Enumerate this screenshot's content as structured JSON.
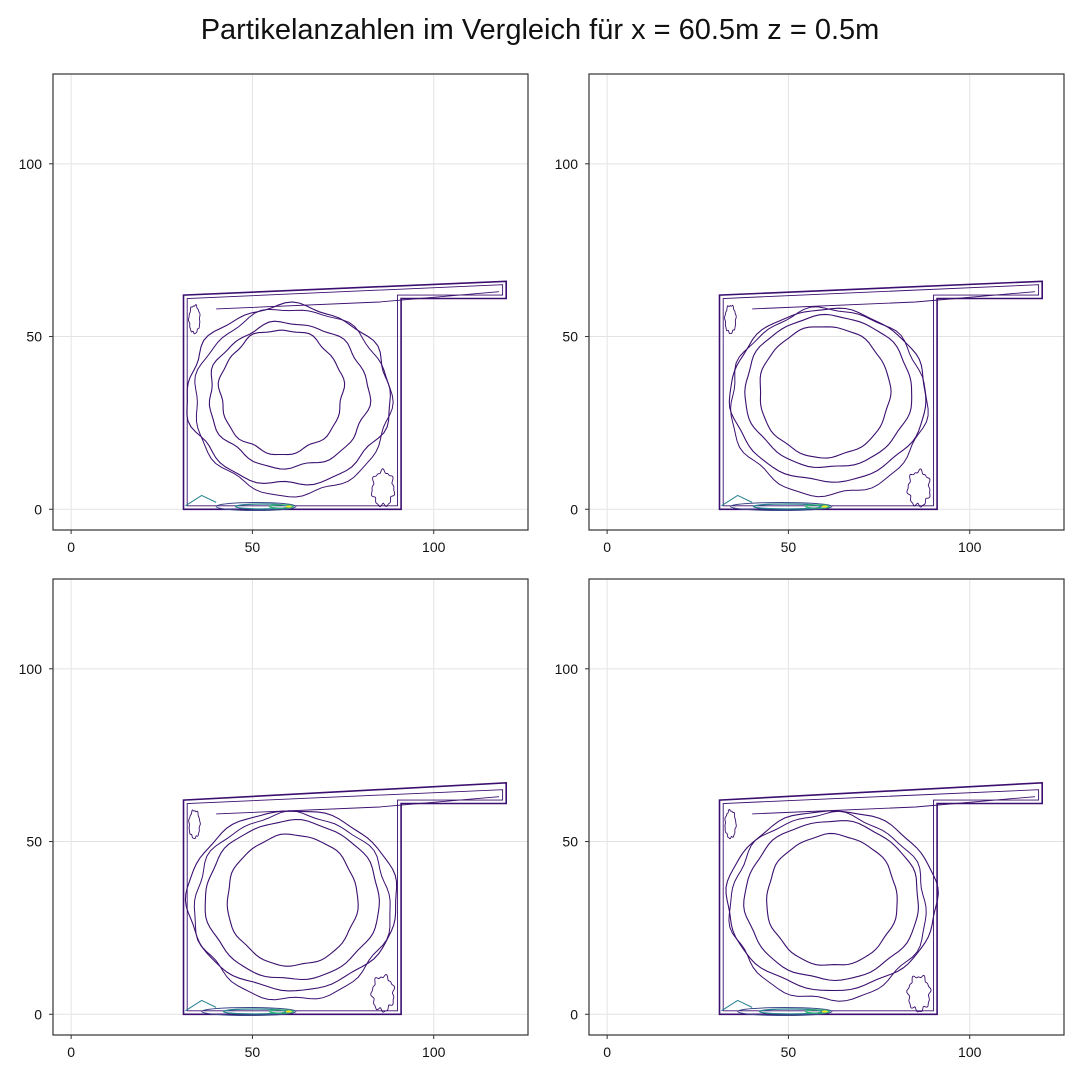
{
  "title": "Partikelanzahlen im Vergleich für x = 60.5m z = 0.5m",
  "colors": {
    "contour_dark": "#3b0f6f",
    "contour_mid": "#3e4a89",
    "contour_teal": "#26828e",
    "contour_green": "#35b779",
    "contour_yellow": "#fde725",
    "grid": "#e3e3e3",
    "frame": "#333333"
  },
  "chart_data": [
    {
      "type": "contour",
      "xlim": [
        -5,
        126
      ],
      "ylim": [
        -6,
        126
      ],
      "xticks": [
        0,
        50,
        100
      ],
      "yticks": [
        0,
        50,
        100
      ],
      "grid": true,
      "domain_outline": [
        [
          31,
          0
        ],
        [
          31,
          62
        ],
        [
          120,
          66
        ],
        [
          120,
          61
        ],
        [
          91,
          61
        ],
        [
          91,
          0
        ]
      ],
      "vortex_center": [
        59,
        32
      ],
      "contour_rings": [
        {
          "cx": 58,
          "cy": 34,
          "rx": 17,
          "ry": 18,
          "level": "low"
        },
        {
          "cx": 60,
          "cy": 33,
          "rx": 22,
          "ry": 21,
          "level": "low"
        },
        {
          "cx": 60,
          "cy": 33,
          "rx": 28,
          "ry": 26,
          "level": "low"
        }
      ],
      "floor_hotspot": {
        "x": [
          40,
          62
        ],
        "y": [
          0,
          2
        ],
        "peak": "high"
      }
    },
    {
      "type": "contour",
      "xlim": [
        -5,
        126
      ],
      "ylim": [
        -6,
        126
      ],
      "xticks": [
        0,
        50,
        100
      ],
      "yticks": [
        0,
        50,
        100
      ],
      "grid": true,
      "domain_outline": [
        [
          31,
          0
        ],
        [
          31,
          62
        ],
        [
          120,
          66
        ],
        [
          120,
          61
        ],
        [
          91,
          61
        ],
        [
          91,
          0
        ]
      ],
      "vortex_center": [
        60,
        32
      ],
      "contour_rings": [
        {
          "cx": 60,
          "cy": 34,
          "rx": 18,
          "ry": 19,
          "level": "low"
        },
        {
          "cx": 61,
          "cy": 34,
          "rx": 23,
          "ry": 22,
          "level": "low"
        },
        {
          "cx": 61,
          "cy": 33,
          "rx": 27,
          "ry": 25,
          "level": "low"
        }
      ],
      "floor_hotspot": {
        "x": [
          34,
          62
        ],
        "y": [
          0,
          3
        ],
        "peak": "high"
      }
    },
    {
      "type": "contour",
      "xlim": [
        -5,
        126
      ],
      "ylim": [
        -6,
        126
      ],
      "xticks": [
        0,
        50,
        100
      ],
      "yticks": [
        0,
        50,
        100
      ],
      "grid": true,
      "domain_outline": [
        [
          31,
          0
        ],
        [
          31,
          62
        ],
        [
          120,
          67
        ],
        [
          120,
          61
        ],
        [
          91,
          61
        ],
        [
          91,
          0
        ]
      ],
      "vortex_center": [
        61,
        32
      ],
      "contour_rings": [
        {
          "cx": 61,
          "cy": 33,
          "rx": 18,
          "ry": 19,
          "level": "low"
        },
        {
          "cx": 61,
          "cy": 33,
          "rx": 24,
          "ry": 23,
          "level": "low"
        },
        {
          "cx": 61,
          "cy": 33,
          "rx": 29,
          "ry": 26,
          "level": "low"
        }
      ],
      "floor_hotspot": {
        "x": [
          36,
          62
        ],
        "y": [
          0,
          3
        ],
        "peak": "high"
      }
    },
    {
      "type": "contour",
      "xlim": [
        -5,
        126
      ],
      "ylim": [
        -6,
        126
      ],
      "xticks": [
        0,
        50,
        100
      ],
      "yticks": [
        0,
        50,
        100
      ],
      "grid": true,
      "domain_outline": [
        [
          31,
          0
        ],
        [
          31,
          62
        ],
        [
          120,
          67
        ],
        [
          120,
          61
        ],
        [
          91,
          61
        ],
        [
          91,
          0
        ]
      ],
      "vortex_center": [
        62,
        32
      ],
      "contour_rings": [
        {
          "cx": 62,
          "cy": 33,
          "rx": 18,
          "ry": 19,
          "level": "low"
        },
        {
          "cx": 62,
          "cy": 33,
          "rx": 24,
          "ry": 23,
          "level": "low"
        },
        {
          "cx": 62,
          "cy": 33,
          "rx": 29,
          "ry": 26,
          "level": "low"
        }
      ],
      "floor_hotspot": {
        "x": [
          36,
          62
        ],
        "y": [
          0,
          4
        ],
        "peak": "high"
      }
    }
  ]
}
